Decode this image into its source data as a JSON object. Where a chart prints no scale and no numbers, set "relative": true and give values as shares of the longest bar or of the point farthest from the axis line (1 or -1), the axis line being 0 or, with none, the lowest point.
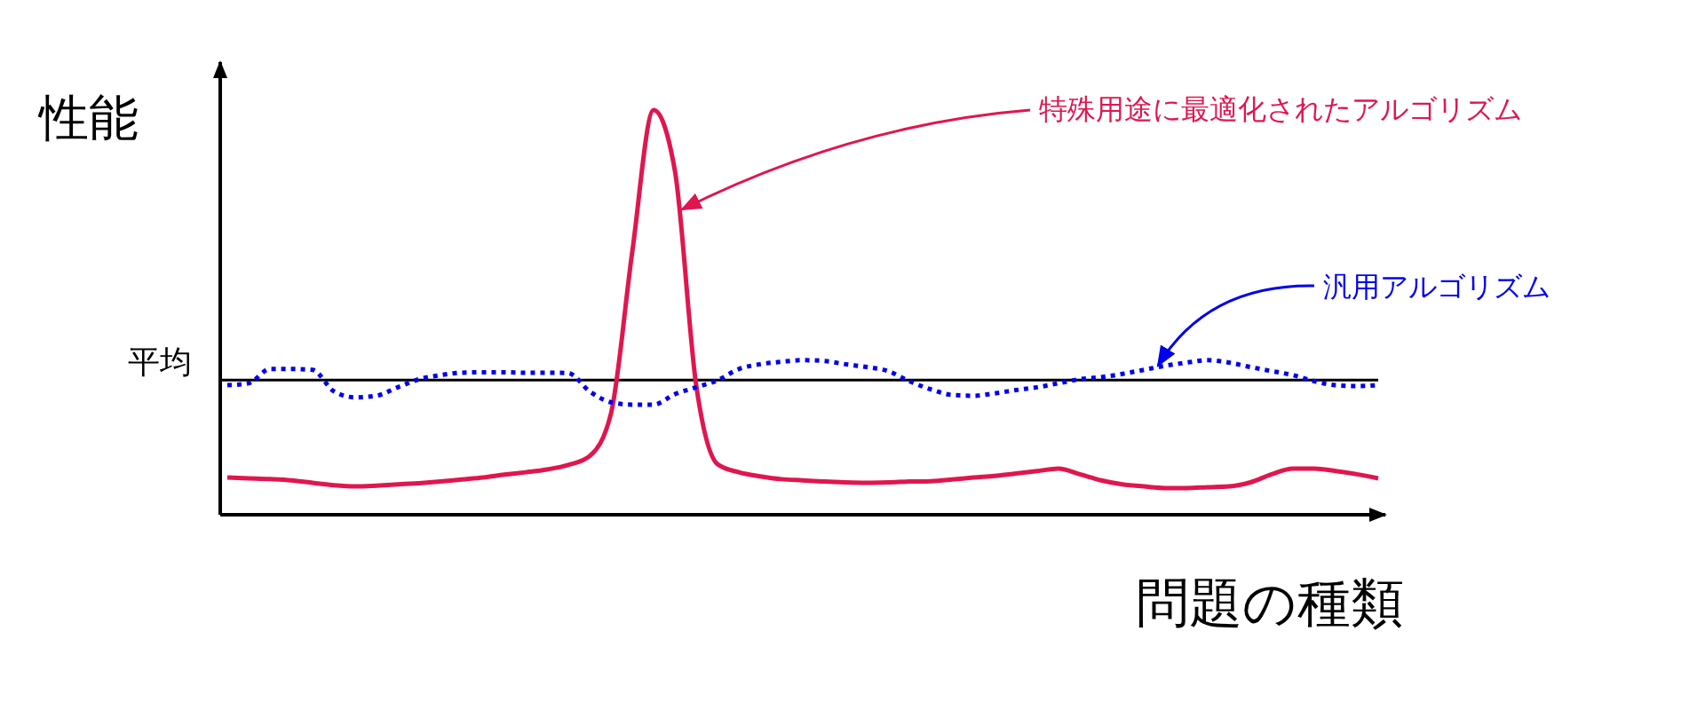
{
  "chart_data": {
    "type": "line",
    "relative": true,
    "xlabel": "問題の種類",
    "ylabel": "性能",
    "categories": [
      null,
      null,
      null,
      null,
      null,
      null,
      null,
      null,
      null,
      null,
      null,
      null,
      null,
      null,
      null,
      null,
      null,
      null,
      null,
      null,
      null,
      null,
      null,
      null,
      null,
      null,
      null,
      null,
      null,
      null,
      null,
      null,
      null,
      null,
      null,
      null,
      null,
      null,
      null,
      null,
      null,
      null,
      null,
      null,
      null,
      null,
      null,
      null,
      null,
      null,
      null,
      null,
      null,
      null,
      null
    ],
    "series": [
      {
        "name": "特殊用途に最適化されたアルゴリズム",
        "color": "#e0164e",
        "line_style": "solid",
        "values": [
          0.092,
          0.09,
          0.088,
          0.085,
          0.079,
          0.073,
          0.07,
          0.072,
          0.075,
          0.078,
          0.082,
          0.087,
          0.092,
          0.099,
          0.105,
          0.112,
          0.123,
          0.145,
          0.25,
          0.65,
          1,
          0.85,
          0.32,
          0.125,
          0.105,
          0.095,
          0.088,
          0.085,
          0.082,
          0.08,
          0.079,
          0.08,
          0.082,
          0.083,
          0.087,
          0.092,
          0.096,
          0.102,
          0.108,
          0.114,
          0.1,
          0.085,
          0.075,
          0.07,
          0.066,
          0.066,
          0.068,
          0.07,
          0.08,
          0.1,
          0.114,
          0.114,
          0.108,
          0.1,
          0.09
        ]
      },
      {
        "name": "汎用アルゴリズム",
        "color": "#0000ee",
        "line_style": "dotted",
        "values": [
          0.32,
          0.325,
          0.36,
          0.36,
          0.358,
          0.305,
          0.29,
          0.294,
          0.315,
          0.335,
          0.345,
          0.351,
          0.352,
          0.352,
          0.351,
          0.351,
          0.35,
          0.305,
          0.278,
          0.272,
          0.272,
          0.298,
          0.315,
          0.332,
          0.36,
          0.372,
          0.378,
          0.382,
          0.38,
          0.372,
          0.365,
          0.355,
          0.33,
          0.31,
          0.296,
          0.294,
          0.3,
          0.308,
          0.315,
          0.325,
          0.335,
          0.34,
          0.348,
          0.358,
          0.368,
          0.376,
          0.382,
          0.376,
          0.365,
          0.355,
          0.345,
          0.33,
          0.32,
          0.318,
          0.32
        ]
      }
    ],
    "ref_lines": [
      {
        "axis": "y",
        "value": 0.333,
        "label": "平均",
        "color": "#000000"
      }
    ]
  }
}
